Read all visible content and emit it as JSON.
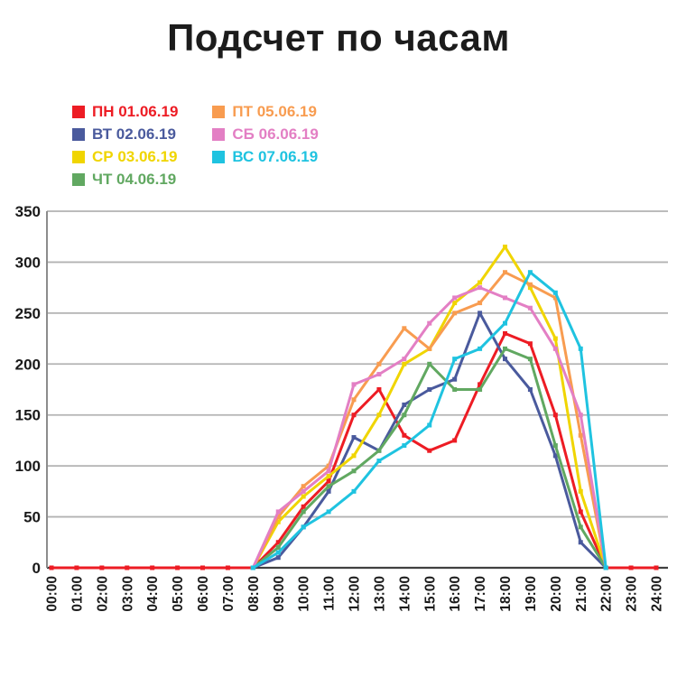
{
  "title": "Подсчет по часам",
  "colors": {
    "background": "#ffffff",
    "grid": "#b3b3b3",
    "zero_axis": "#404040",
    "left_axis": "#8c8c8c",
    "axis_text": "#1a1a1a"
  },
  "chart_data": {
    "type": "line",
    "title": "Подсчет по часам",
    "xlabel": "",
    "ylabel": "",
    "ylim": [
      0,
      350
    ],
    "yticks": [
      0,
      50,
      100,
      150,
      200,
      250,
      300,
      350
    ],
    "grid": "horizontal",
    "legend_position": "top-left, two columns",
    "x_labels": [
      "00:00",
      "01:00",
      "02:00",
      "03:00",
      "04:00",
      "05:00",
      "06:00",
      "07:00",
      "08:00",
      "09:00",
      "10:00",
      "11:00",
      "12:00",
      "13:00",
      "14:00",
      "15:00",
      "16:00",
      "17:00",
      "18:00",
      "19:00",
      "20:00",
      "21:00",
      "22:00",
      "23:00",
      "24:00"
    ],
    "series": [
      {
        "name": "ПН 01.06.19",
        "color": "#ed1c24",
        "values": [
          0,
          0,
          0,
          0,
          0,
          0,
          0,
          0,
          0,
          25,
          60,
          85,
          150,
          175,
          130,
          115,
          125,
          180,
          230,
          220,
          150,
          55,
          0,
          0,
          0
        ]
      },
      {
        "name": "ВТ 02.06.19",
        "color": "#4a5a9d",
        "values": [
          null,
          null,
          null,
          null,
          null,
          null,
          null,
          null,
          0,
          10,
          40,
          75,
          128,
          115,
          160,
          175,
          185,
          250,
          205,
          175,
          110,
          25,
          0,
          null,
          null
        ]
      },
      {
        "name": "СР 03.06.19",
        "color": "#f0d500",
        "values": [
          null,
          null,
          null,
          null,
          null,
          null,
          null,
          null,
          0,
          45,
          70,
          90,
          110,
          150,
          200,
          215,
          260,
          280,
          315,
          275,
          225,
          75,
          0,
          null,
          null
        ]
      },
      {
        "name": "ЧТ 04.06.19",
        "color": "#61a861",
        "values": [
          null,
          null,
          null,
          null,
          null,
          null,
          null,
          null,
          0,
          20,
          55,
          80,
          95,
          115,
          150,
          200,
          175,
          175,
          215,
          205,
          120,
          40,
          0,
          null,
          null
        ]
      },
      {
        "name": "ПТ 05.06.19",
        "color": "#f89c50",
        "values": [
          null,
          null,
          null,
          null,
          null,
          null,
          null,
          null,
          0,
          50,
          80,
          100,
          165,
          200,
          235,
          215,
          250,
          260,
          290,
          278,
          265,
          130,
          0,
          null,
          null
        ]
      },
      {
        "name": "СБ 06.06.19",
        "color": "#e37fc4",
        "values": [
          null,
          null,
          null,
          null,
          null,
          null,
          null,
          null,
          0,
          55,
          75,
          95,
          180,
          190,
          205,
          240,
          265,
          275,
          265,
          255,
          215,
          150,
          0,
          null,
          null
        ]
      },
      {
        "name": "ВС 07.06.19",
        "color": "#1fc3e0",
        "values": [
          null,
          null,
          null,
          null,
          null,
          null,
          null,
          null,
          0,
          15,
          40,
          55,
          75,
          105,
          120,
          140,
          205,
          215,
          240,
          290,
          270,
          215,
          0,
          null,
          null
        ]
      }
    ]
  }
}
